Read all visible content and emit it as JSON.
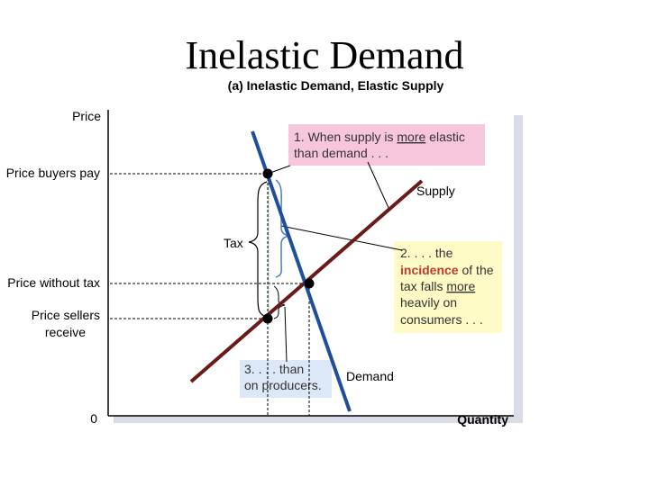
{
  "header": {
    "title": "Inelastic Demand",
    "subtitle": "(a) Inelastic Demand, Elastic Supply"
  },
  "axes": {
    "y_label": "Price",
    "x_label": "Quantity",
    "origin_label": "0"
  },
  "price_labels": {
    "buyers_pay": "Price buyers pay",
    "without_tax": "Price without tax",
    "sellers_receive_line1": "Price sellers",
    "sellers_receive_line2": "receive"
  },
  "curve_labels": {
    "supply": "Supply",
    "demand": "Demand",
    "tax": "Tax"
  },
  "callouts": {
    "one_line1_a": "1. When supply is ",
    "one_line1_b": "more",
    "one_line1_c": " elastic",
    "one_line2": "than demand . . .",
    "two_line1": "2. . . . the",
    "two_line2_a": "incidence",
    "two_line2_b": " of the",
    "two_line3_a": "tax falls ",
    "two_line3_b": "more",
    "two_line4": "heavily on",
    "two_line5": "consumers . . .",
    "three_line1": "3. . . . than",
    "three_line2": "on producers."
  },
  "colors": {
    "supply": "#6b1a1a",
    "demand": "#1f4e9c",
    "callout_pink": "#f7c6dc",
    "callout_yellow": "#fffbc6",
    "callout_blue": "#dce7f7",
    "incidence_word": "#c0392b",
    "brace_blue": "#4a7fc4",
    "bracket_green": "#7fb88a",
    "panel_shadow": "#d9dce6"
  }
}
